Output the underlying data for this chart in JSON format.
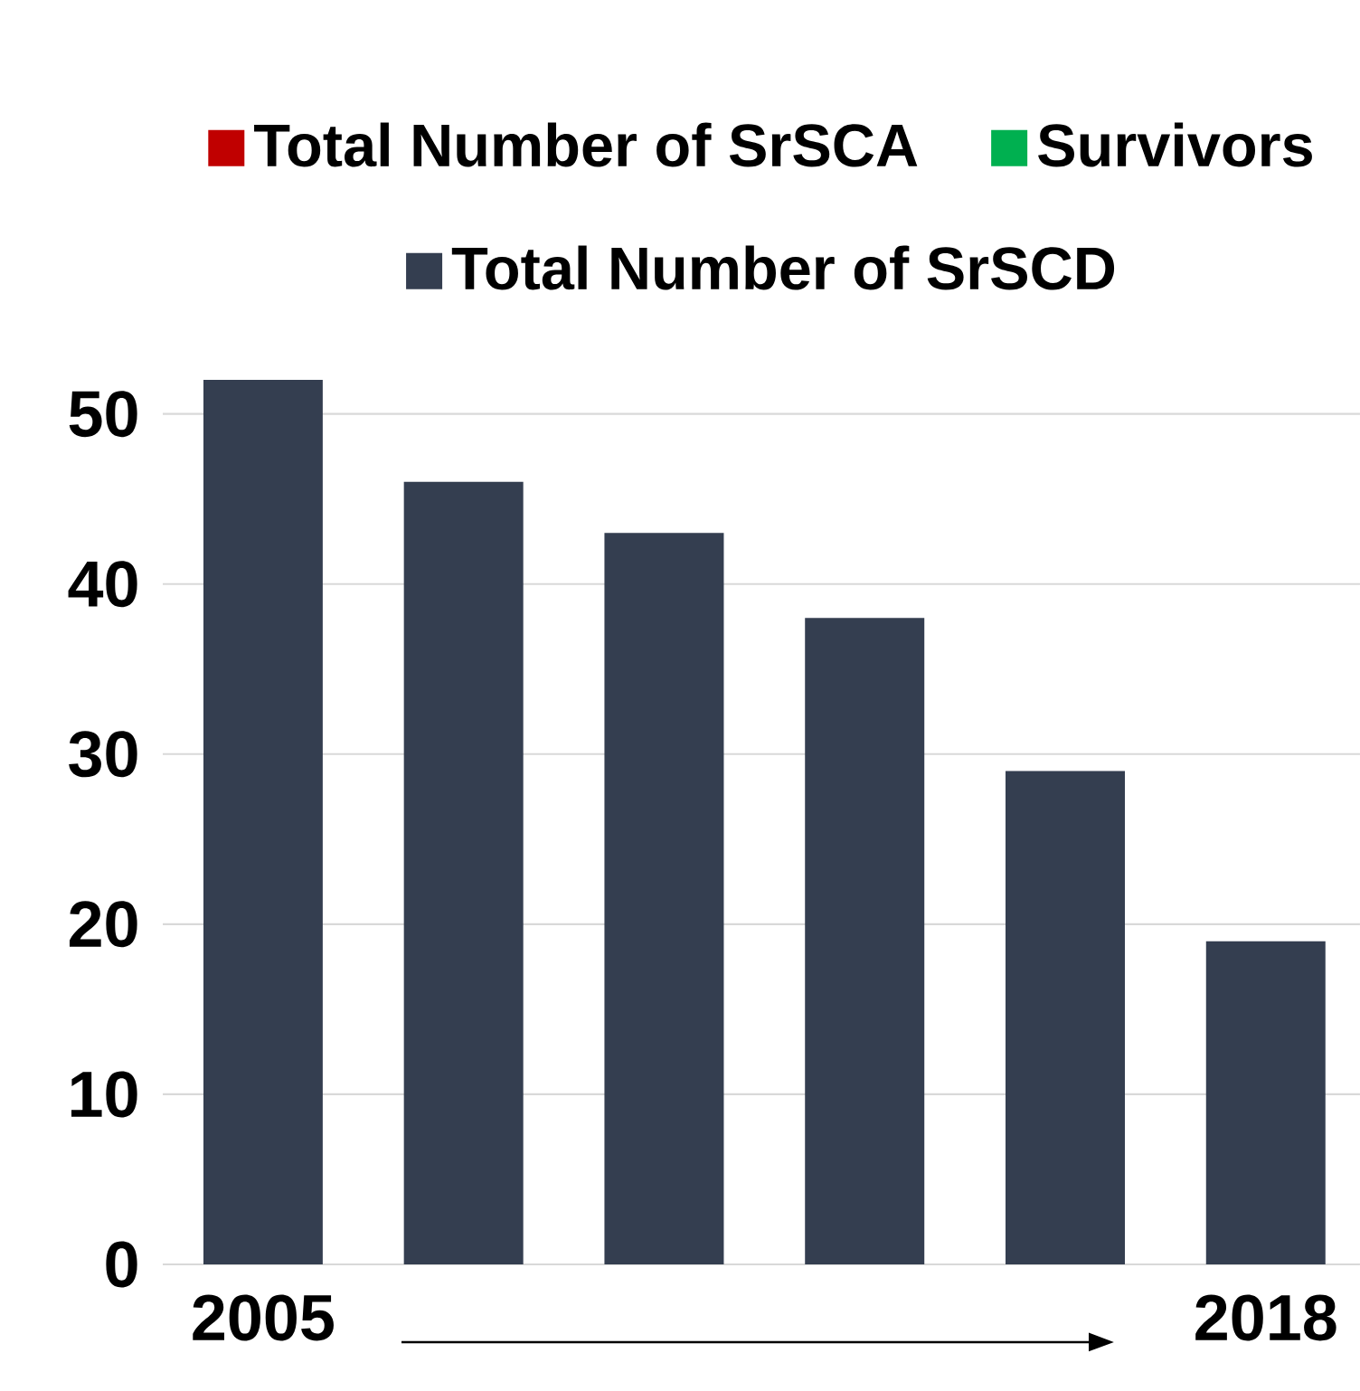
{
  "chart_data": {
    "type": "bar",
    "categories": [
      "2005",
      null,
      null,
      null,
      null,
      "2018"
    ],
    "series": [
      {
        "name": "Total Number of SrSCA",
        "color": "#c00000",
        "values": [
          null,
          null,
          null,
          null,
          null,
          null
        ]
      },
      {
        "name": "Survivors",
        "color": "#00b050",
        "values": [
          null,
          null,
          null,
          null,
          null,
          null
        ]
      },
      {
        "name": "Total Number of SrSCD",
        "color": "#343e50",
        "values": [
          52,
          46,
          43,
          38,
          29,
          19
        ]
      }
    ],
    "ylim": [
      0,
      52
    ],
    "yticks": [
      0,
      10,
      20,
      30,
      40,
      50
    ],
    "grid": "y",
    "legend": "top"
  }
}
